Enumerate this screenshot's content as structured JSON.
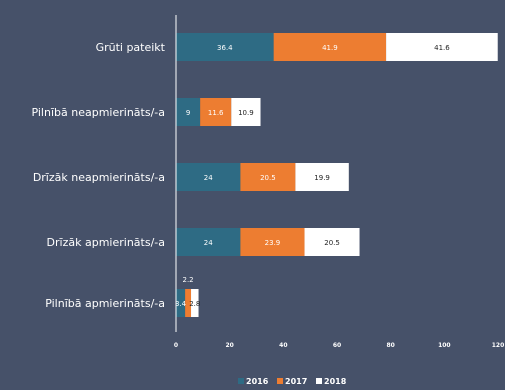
{
  "chart_data": {
    "type": "bar",
    "orientation": "horizontal",
    "stacked": true,
    "categories": [
      "Grūti pateikt",
      "Pilnībā neapmierināts/-a",
      "Drīzāk neapmierināts/-a",
      "Drīzāk apmierināts/-a",
      "Pilnībā apmierināts/-a"
    ],
    "series": [
      {
        "name": "2016",
        "color": "#2e6b84",
        "label_color": "#ffffff",
        "values": [
          36.4,
          9,
          24,
          24,
          3.4
        ]
      },
      {
        "name": "2017",
        "color": "#ed7d31",
        "label_color": "#ffffff",
        "values": [
          41.9,
          11.6,
          20.5,
          23.9,
          2.2
        ]
      },
      {
        "name": "2018",
        "color": "#ffffff",
        "label_color": "#222222",
        "values": [
          41.6,
          10.9,
          19.9,
          20.5,
          2.8
        ]
      }
    ],
    "xlim": [
      0,
      120
    ],
    "xticks": [
      "0",
      "20",
      "40",
      "60",
      "80",
      "100",
      "120"
    ],
    "grid": false,
    "legend_position": "bottom"
  }
}
